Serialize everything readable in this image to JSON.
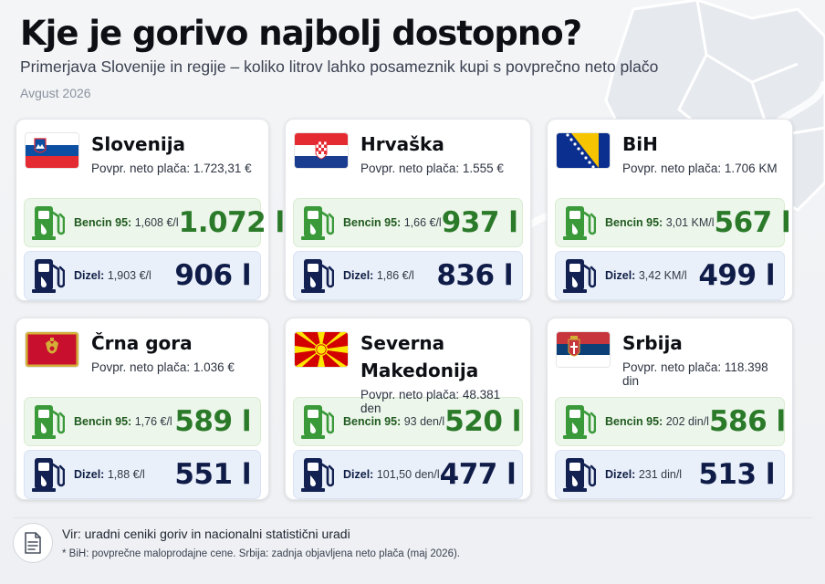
{
  "header": {
    "title": "Kje je gorivo najbolj dostopno?",
    "subtitle": "Primerjava Slovenije in regije – koliko litrov lahko posameznik kupi s povprečno neto plačo",
    "date": "Avgust 2026"
  },
  "labels": {
    "petrol": "Bencin 95:",
    "diesel": "Dizel:"
  },
  "countries": [
    {
      "name": "Slovenija",
      "salary": "Povpr. neto plača: 1.723,31 €",
      "flag": "slovenia-flag",
      "petrol_price": "1,608 €/l",
      "petrol_litres": "1.072 l",
      "diesel_price": "1,903 €/l",
      "diesel_litres": "906 l"
    },
    {
      "name": "Hrvaška",
      "salary": "Povpr. neto plača: 1.555 €",
      "flag": "croatia-flag",
      "petrol_price": "1,66 €/l",
      "petrol_litres": "937 l",
      "diesel_price": "1,86 €/l",
      "diesel_litres": "836 l"
    },
    {
      "name": "BiH",
      "salary": "Povpr. neto plača: 1.706 KM",
      "flag": "bih-flag",
      "petrol_price": "3,01 KM/l",
      "petrol_litres": "567 l",
      "diesel_price": "3,42 KM/l",
      "diesel_litres": "499 l"
    },
    {
      "name": "Črna gora",
      "salary": "Povpr. neto plača: 1.036 €",
      "flag": "montenegro-flag",
      "petrol_price": "1,76 €/l",
      "petrol_litres": "589 l",
      "diesel_price": "1,88 €/l",
      "diesel_litres": "551 l"
    },
    {
      "name": "Severna Makedonija",
      "salary": "Povpr. neto plača: 48.381 den",
      "flag": "north-macedonia-flag",
      "petrol_price": "93 den/l",
      "petrol_litres": "520 l",
      "diesel_price": "101,50 den/l",
      "diesel_litres": "477 l"
    },
    {
      "name": "Srbija",
      "salary": "Povpr. neto plača: 118.398 din",
      "flag": "serbia-flag",
      "petrol_price": "202 din/l",
      "petrol_litres": "586 l",
      "diesel_price": "231 din/l",
      "diesel_litres": "513 l"
    }
  ],
  "colors": {
    "petrol_accent": "#2a7a2a",
    "diesel_accent": "#101c48",
    "petrol_bg": "#edf6ea",
    "diesel_bg": "#eaf0fa"
  },
  "icons": {
    "petrol": "fuel-pump-green-icon",
    "diesel": "fuel-pump-navy-icon",
    "footer": "document-icon"
  },
  "footer": {
    "source": "Vir: uradni ceniki goriv in nacionalni statistični uradi",
    "note": "* BiH: povprečne maloprodajne cene. Srbija: zadnja objavljena neto plača (maj 2026)."
  }
}
